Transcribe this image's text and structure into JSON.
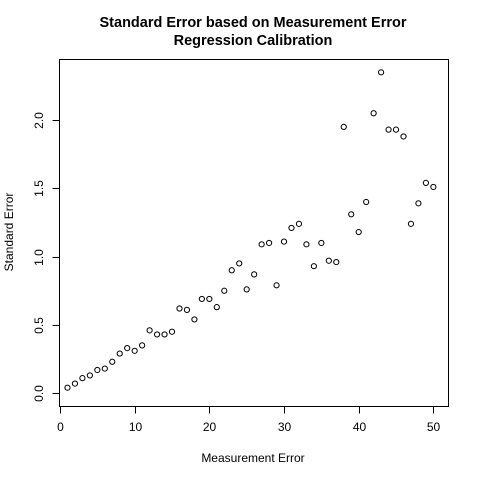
{
  "chart_data": {
    "type": "scatter",
    "title_line1": "Standard Error based on Measurement Error",
    "title_line2": "Regression Calibration",
    "xlabel": "Measurement Error",
    "ylabel": "Standard Error",
    "xlim": [
      0,
      51.96
    ],
    "ylim": [
      -0.094,
      2.44
    ],
    "xticks": [
      0,
      10,
      20,
      30,
      40,
      50
    ],
    "xtick_labels": [
      "0",
      "10",
      "20",
      "30",
      "40",
      "50"
    ],
    "yticks": [
      0,
      0.5,
      1.0,
      1.5,
      2.0
    ],
    "ytick_labels": [
      "0.0",
      "0.5",
      "1.0",
      "1.5",
      "2.0"
    ],
    "grid": false,
    "points": [
      {
        "x": 1,
        "y": 0.04
      },
      {
        "x": 2,
        "y": 0.07
      },
      {
        "x": 3,
        "y": 0.11
      },
      {
        "x": 4,
        "y": 0.13
      },
      {
        "x": 5,
        "y": 0.17
      },
      {
        "x": 6,
        "y": 0.18
      },
      {
        "x": 7,
        "y": 0.23
      },
      {
        "x": 8,
        "y": 0.29
      },
      {
        "x": 9,
        "y": 0.33
      },
      {
        "x": 10,
        "y": 0.31
      },
      {
        "x": 11,
        "y": 0.35
      },
      {
        "x": 12,
        "y": 0.46
      },
      {
        "x": 13,
        "y": 0.43
      },
      {
        "x": 14,
        "y": 0.43
      },
      {
        "x": 15,
        "y": 0.45
      },
      {
        "x": 16,
        "y": 0.62
      },
      {
        "x": 17,
        "y": 0.61
      },
      {
        "x": 18,
        "y": 0.54
      },
      {
        "x": 19,
        "y": 0.69
      },
      {
        "x": 20,
        "y": 0.69
      },
      {
        "x": 21,
        "y": 0.63
      },
      {
        "x": 22,
        "y": 0.75
      },
      {
        "x": 23,
        "y": 0.9
      },
      {
        "x": 24,
        "y": 0.95
      },
      {
        "x": 25,
        "y": 0.76
      },
      {
        "x": 26,
        "y": 0.87
      },
      {
        "x": 27,
        "y": 1.09
      },
      {
        "x": 28,
        "y": 1.1
      },
      {
        "x": 29,
        "y": 0.79
      },
      {
        "x": 30,
        "y": 1.11
      },
      {
        "x": 31,
        "y": 1.21
      },
      {
        "x": 32,
        "y": 1.24
      },
      {
        "x": 33,
        "y": 1.09
      },
      {
        "x": 34,
        "y": 0.93
      },
      {
        "x": 35,
        "y": 1.1
      },
      {
        "x": 36,
        "y": 0.97
      },
      {
        "x": 37,
        "y": 0.96
      },
      {
        "x": 38,
        "y": 1.95
      },
      {
        "x": 39,
        "y": 1.31
      },
      {
        "x": 40,
        "y": 1.18
      },
      {
        "x": 41,
        "y": 1.4
      },
      {
        "x": 42,
        "y": 2.05
      },
      {
        "x": 43,
        "y": 2.35
      },
      {
        "x": 44,
        "y": 1.93
      },
      {
        "x": 45,
        "y": 1.93
      },
      {
        "x": 46,
        "y": 1.88
      },
      {
        "x": 47,
        "y": 1.24
      },
      {
        "x": 48,
        "y": 1.39
      },
      {
        "x": 49,
        "y": 1.54
      },
      {
        "x": 50,
        "y": 1.51
      }
    ]
  }
}
